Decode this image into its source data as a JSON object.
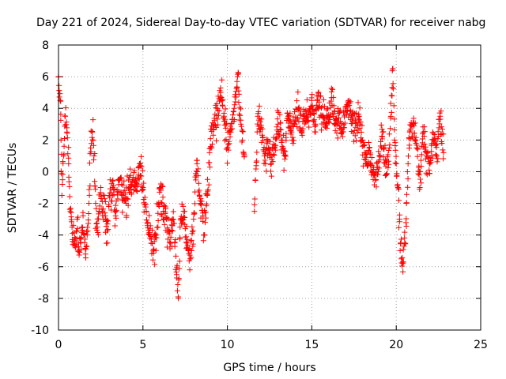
{
  "chart_data": {
    "type": "scatter",
    "title": "Day 221 of 2024, Sidereal Day-to-day VTEC variation (SDTVAR) for receiver nabg",
    "xlabel": "GPS time / hours",
    "ylabel": "SDTVAR / TECUs",
    "xlim": [
      0,
      25
    ],
    "ylim": [
      -10,
      8
    ],
    "xticks": [
      0,
      5,
      10,
      15,
      20,
      25
    ],
    "yticks": [
      -10,
      -8,
      -6,
      -4,
      -2,
      0,
      2,
      4,
      6,
      8
    ],
    "xtick_labels": [
      "0",
      "5",
      "10",
      "15",
      "20",
      "25"
    ],
    "ytick_labels": [
      "-10",
      "-8",
      "-6",
      "-4",
      "-2",
      "0",
      "2",
      "4",
      "6",
      "8"
    ],
    "grid": true,
    "marker": "plus",
    "color": "#ff0000",
    "series": [
      {
        "name": "SDTVAR nabg",
        "x": [
          0.0,
          0.1,
          0.15,
          0.2,
          0.3,
          0.4,
          0.5,
          0.6,
          0.7,
          0.8,
          0.9,
          1.0,
          1.1,
          1.2,
          1.3,
          1.4,
          1.5,
          1.6,
          1.7,
          1.8,
          1.9,
          2.0,
          2.1,
          2.2,
          2.3,
          2.4,
          2.5,
          2.6,
          2.7,
          2.8,
          2.9,
          3.0,
          3.2,
          3.4,
          3.6,
          3.8,
          4.0,
          4.2,
          4.4,
          4.6,
          4.8,
          5.0,
          5.2,
          5.4,
          5.6,
          5.8,
          6.0,
          6.2,
          6.4,
          6.6,
          6.8,
          7.0,
          7.1,
          7.2,
          7.4,
          7.6,
          7.8,
          8.0,
          8.2,
          8.4,
          8.6,
          8.8,
          9.0,
          9.2,
          9.4,
          9.6,
          9.8,
          10.0,
          10.2,
          10.4,
          10.6,
          10.8,
          11.0,
          11.6,
          11.8,
          12.0,
          12.2,
          12.4,
          12.6,
          12.8,
          13.0,
          13.2,
          13.4,
          13.6,
          13.8,
          14.0,
          14.2,
          14.4,
          14.6,
          14.8,
          15.0,
          15.2,
          15.4,
          15.6,
          15.8,
          16.0,
          16.2,
          16.4,
          16.6,
          16.8,
          17.0,
          17.2,
          17.4,
          17.6,
          17.8,
          18.0,
          18.2,
          18.4,
          18.6,
          18.8,
          19.0,
          19.2,
          19.4,
          19.6,
          19.8,
          19.9,
          20.0,
          20.1,
          20.2,
          20.3,
          20.4,
          20.5,
          20.6,
          20.7,
          20.8,
          21.0,
          21.2,
          21.4,
          21.6,
          21.8,
          22.0,
          22.2,
          22.4,
          22.6,
          22.8
        ],
        "y": [
          6.0,
          4.5,
          2.0,
          -1.5,
          1.0,
          3.5,
          2.5,
          0.5,
          -2.5,
          -3.5,
          -4.5,
          -4.8,
          -3.0,
          -5.0,
          -4.5,
          -3.5,
          -4.0,
          -5.2,
          -4.0,
          -2.0,
          1.5,
          2.5,
          1.0,
          -2.0,
          -3.5,
          -2.5,
          -1.0,
          -2.5,
          -1.5,
          -3.0,
          -4.5,
          -1.5,
          -1.0,
          -2.5,
          -0.5,
          -1.5,
          -2.0,
          -1.0,
          -0.5,
          -1.2,
          0.5,
          -1.0,
          -2.5,
          -4.0,
          -5.0,
          -4.0,
          -1.0,
          -2.5,
          -3.0,
          -4.5,
          -3.0,
          -6.5,
          -8.0,
          -3.5,
          -2.5,
          -4.5,
          -5.5,
          -3.0,
          0.5,
          -2.0,
          -4.0,
          -1.5,
          1.5,
          3.0,
          4.0,
          5.0,
          3.5,
          1.5,
          2.5,
          4.0,
          6.0,
          3.0,
          1.0,
          -2.5,
          3.5,
          2.8,
          1.0,
          2.0,
          0.5,
          1.5,
          3.0,
          2.0,
          0.8,
          3.5,
          2.5,
          3.0,
          4.0,
          2.5,
          3.8,
          3.2,
          4.5,
          3.0,
          4.8,
          3.5,
          2.8,
          3.6,
          4.2,
          3.0,
          3.4,
          2.5,
          3.8,
          4.5,
          3.2,
          2.8,
          3.5,
          2.0,
          0.5,
          1.5,
          0.0,
          -0.5,
          1.0,
          2.5,
          -0.2,
          1.5,
          6.5,
          2.0,
          0.5,
          -1.0,
          -3.0,
          -5.5,
          -5.8,
          -4.5,
          -2.0,
          0.5,
          2.5,
          3.0,
          1.5,
          -1.0,
          2.5,
          1.0,
          0.5,
          2.0,
          1.0,
          3.5,
          1.2
        ]
      }
    ]
  }
}
